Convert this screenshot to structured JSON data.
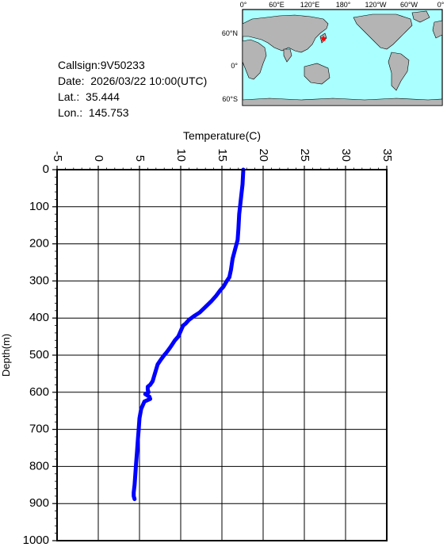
{
  "info": {
    "callsign": "Callsign:9V50233",
    "date": "Date:  2026/03/22 10:00(UTC)",
    "lat_label": "Lat.:",
    "lat_value": "35.444",
    "lon_label": "Lon.:",
    "lon_value": "145.753"
  },
  "map": {
    "lon_labels": [
      "0°",
      "60°E",
      "120°E",
      "180°",
      "120°W",
      "60°W",
      "0°"
    ],
    "lat_labels": [
      "60°N",
      "0°",
      "60°S"
    ],
    "marker_lat": 35.444,
    "marker_lon": 145.753,
    "ocean_color": "#aaffff",
    "land_color": "#b4b4b4",
    "marker_color": "#ff0000"
  },
  "chart_data": {
    "type": "line",
    "title": "",
    "xlabel": "Temperature(C)",
    "ylabel": "Depth(m)",
    "xlim": [
      -5,
      35
    ],
    "ylim": [
      0,
      1000
    ],
    "y_inverted": true,
    "x_ticks": [
      "-5",
      "0",
      "5",
      "10",
      "15",
      "20",
      "25",
      "30",
      "35"
    ],
    "y_ticks": [
      "0",
      "100",
      "200",
      "300",
      "400",
      "500",
      "600",
      "700",
      "800",
      "900",
      "1000"
    ],
    "grid": true,
    "line_color": "#0000ff",
    "series": [
      {
        "x": [
          17.6,
          17.5,
          17.3,
          17.1,
          17.0,
          16.9,
          16.6,
          16.3,
          16.1,
          15.9,
          15.6,
          15.2,
          14.8,
          14.3,
          13.7,
          13.0,
          12.3,
          11.6,
          11.0,
          10.6,
          10.3,
          10.1,
          9.9,
          9.7,
          9.3,
          9.0,
          8.7,
          8.3,
          8.0,
          7.6,
          7.2,
          7.0,
          6.8,
          6.6,
          6.3,
          6.0,
          6.0,
          6.1,
          5.7,
          6.2,
          6.3,
          5.6,
          5.2,
          5.0,
          4.9,
          4.8,
          4.7,
          4.6,
          4.5,
          4.4,
          4.3,
          4.3,
          4.4
        ],
        "y": [
          0,
          40,
          80,
          120,
          160,
          190,
          215,
          240,
          270,
          290,
          300,
          315,
          325,
          340,
          355,
          370,
          385,
          395,
          405,
          415,
          420,
          430,
          440,
          450,
          460,
          470,
          480,
          492,
          500,
          512,
          525,
          540,
          555,
          570,
          580,
          585,
          593,
          600,
          605,
          612,
          618,
          625,
          645,
          670,
          700,
          730,
          760,
          790,
          820,
          850,
          870,
          880,
          888
        ]
      }
    ]
  }
}
